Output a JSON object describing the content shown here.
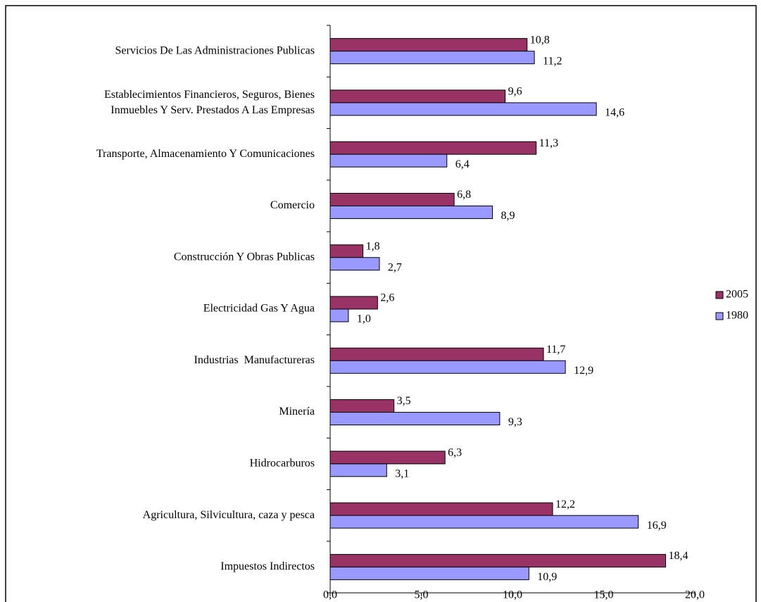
{
  "chart_data": {
    "type": "bar",
    "orientation": "horizontal",
    "categories": [
      "Servicios De Las Administraciones Publicas",
      "Establecimientos Financieros, Seguros, Bienes\nInmuebles Y Serv. Prestados A Las Empresas",
      "Transporte, Almacenamiento Y Comunicaciones",
      "Comercio",
      "Construcción Y Obras Publicas",
      "Electricidad Gas Y Agua",
      "Industrias  Manufactureras",
      "Minería",
      "Hidrocarburos",
      "Agricultura, Silvicultura, caza y pesca",
      "Impuestos Indirectos"
    ],
    "series": [
      {
        "name": "2005",
        "color": "#993366",
        "values": [
          10.8,
          9.6,
          11.3,
          6.8,
          1.8,
          2.6,
          11.7,
          3.5,
          6.3,
          12.2,
          18.4
        ],
        "value_labels": [
          "10,8",
          "9,6",
          "11,3",
          "6,8",
          "1,8",
          "2,6",
          "11,7",
          "3,5",
          "6,3",
          "12,2",
          "18,4"
        ]
      },
      {
        "name": "1980",
        "color": "#9999ff",
        "values": [
          11.2,
          14.6,
          6.4,
          8.9,
          2.7,
          1.0,
          12.9,
          9.3,
          3.1,
          16.9,
          10.9
        ],
        "value_labels": [
          "11,2",
          "14,6",
          "6,4",
          "8,9",
          "2,7",
          "1,0",
          "12,9",
          "9,3",
          "3,1",
          "16,9",
          "10,9"
        ]
      }
    ],
    "xlim": [
      0,
      20
    ],
    "xticks": [
      {
        "value": 0,
        "label": "0,0"
      },
      {
        "value": 5,
        "label": "5,0"
      },
      {
        "value": 10,
        "label": "10,0"
      },
      {
        "value": 15,
        "label": "15,0"
      },
      {
        "value": 20,
        "label": "20,0"
      }
    ],
    "grid": false,
    "legend": "right"
  }
}
